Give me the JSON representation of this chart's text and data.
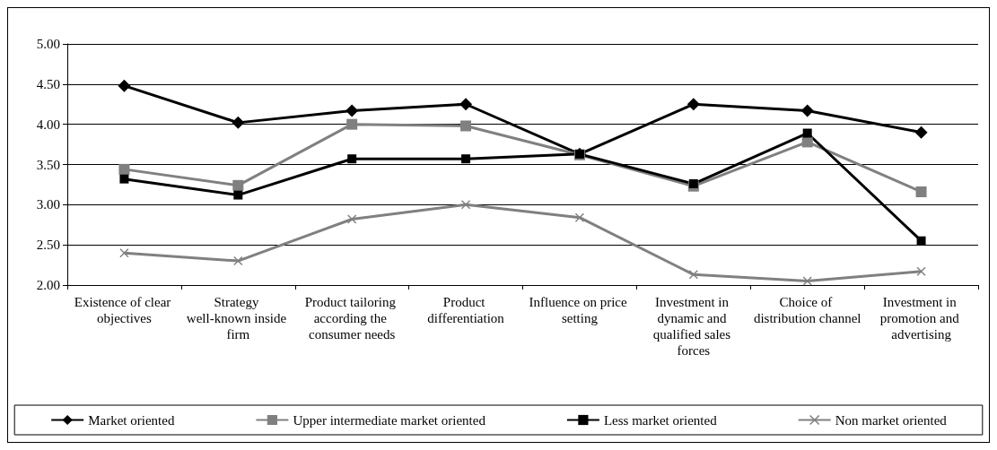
{
  "chart_data": {
    "type": "line",
    "categories": [
      "Existence of clear objectives",
      "Strategy well-known inside firm",
      "Product tailoring according the consumer needs",
      "Product differentiation",
      "Influence on price setting",
      "Investment in dynamic and qualified sales forces",
      "Choice of distribution channel",
      "Investment in promotion and advertising"
    ],
    "series": [
      {
        "name": "Market oriented",
        "color": "#000000",
        "marker": "diamond",
        "values": [
          4.48,
          4.02,
          4.17,
          4.25,
          3.63,
          4.25,
          4.17,
          3.9
        ]
      },
      {
        "name": "Upper intermediate market oriented",
        "color": "#808080",
        "marker": "square",
        "values": [
          3.44,
          3.24,
          4.0,
          3.98,
          3.62,
          3.23,
          3.78,
          3.16
        ]
      },
      {
        "name": "Less market oriented",
        "color": "#000000",
        "marker": "square",
        "values": [
          3.32,
          3.12,
          3.57,
          3.57,
          3.63,
          3.26,
          3.89,
          2.55
        ]
      },
      {
        "name": "Non market oriented",
        "color": "#808080",
        "marker": "cross",
        "values": [
          2.4,
          2.3,
          2.82,
          3.0,
          2.84,
          2.13,
          2.05,
          2.17
        ]
      }
    ],
    "ylim": [
      2,
      5
    ],
    "yticks": [
      {
        "value": 2,
        "label": "2.00"
      },
      {
        "value": 2.5,
        "label": "2.50"
      },
      {
        "value": 3,
        "label": "3.00"
      },
      {
        "value": 3.5,
        "label": "3.50"
      },
      {
        "value": 4,
        "label": "4.00"
      },
      {
        "value": 4.5,
        "label": "4.50"
      },
      {
        "value": 5,
        "label": "5.00"
      }
    ],
    "grid": "y",
    "legend": "bottom",
    "line_style": "solid"
  }
}
